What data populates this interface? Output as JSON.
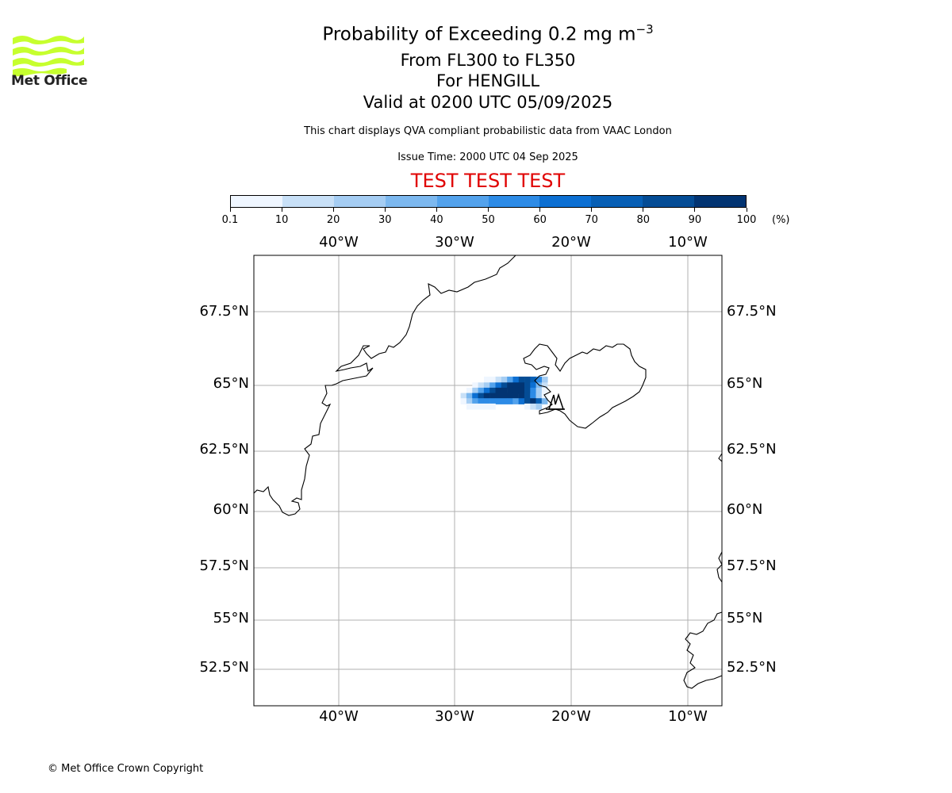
{
  "logo": {
    "text": "Met Office",
    "color": "#c6ff2e"
  },
  "title": {
    "main": "Probability of Exceeding 0.2 mg m",
    "main_sup": "−3",
    "flight_levels": "From FL300 to FL350",
    "volcano": "For HENGILL",
    "valid": "Valid at 0200 UTC 05/09/2025",
    "description": "This chart displays QVA compliant probabilistic data from VAAC London",
    "issue_time": "Issue Time: 2000 UTC 04 Sep 2025",
    "test_banner": "TEST TEST TEST",
    "test_color": "#e00000"
  },
  "colorbar": {
    "ticks": [
      "0.1",
      "10",
      "20",
      "30",
      "40",
      "50",
      "60",
      "70",
      "80",
      "90",
      "100"
    ],
    "units": "(%)",
    "colors": [
      "#eff6ff",
      "#c8e0f7",
      "#a5cdf3",
      "#7cb8ef",
      "#53a2ec",
      "#2d8be6",
      "#0c6fd2",
      "#075fb5",
      "#044c95",
      "#023472"
    ]
  },
  "map": {
    "lon_labels": [
      "40°W",
      "30°W",
      "20°W",
      "10°W"
    ],
    "lat_labels": [
      "67.5°N",
      "65°N",
      "62.5°N",
      "60°N",
      "57.5°N",
      "55°N",
      "52.5°N"
    ],
    "volcano_symbol": "Hengill",
    "plume_probability_rows": [
      {
        "lat": 65.2,
        "lon_start": -27.5,
        "lon_end": -22.0,
        "levels": [
          1,
          1,
          2,
          3,
          5,
          7,
          9,
          9,
          8,
          6,
          3
        ]
      },
      {
        "lat": 65.0,
        "lon_start": -28.5,
        "lon_end": -21.5,
        "levels": [
          1,
          2,
          3,
          5,
          7,
          9,
          10,
          10,
          10,
          9,
          7,
          4,
          2
        ]
      },
      {
        "lat": 64.8,
        "lon_start": -29.0,
        "lon_end": -21.5,
        "levels": [
          1,
          3,
          5,
          7,
          9,
          10,
          10,
          10,
          10,
          10,
          9,
          6,
          3,
          1
        ]
      },
      {
        "lat": 64.6,
        "lon_start": -29.5,
        "lon_end": -21.5,
        "levels": [
          2,
          4,
          7,
          9,
          10,
          10,
          10,
          10,
          10,
          10,
          10,
          9,
          6,
          3,
          1
        ]
      },
      {
        "lat": 64.4,
        "lon_start": -29.5,
        "lon_end": -21.5,
        "levels": [
          1,
          3,
          5,
          6,
          6,
          6,
          6,
          6,
          6,
          5,
          7,
          9,
          10,
          8,
          4
        ]
      },
      {
        "lat": 64.2,
        "lon_start": -29.0,
        "lon_end": -22.0,
        "levels": [
          1,
          1,
          1,
          1,
          1,
          0,
          0,
          0,
          0,
          0,
          1,
          2,
          3
        ]
      }
    ]
  },
  "footer": {
    "copyright": "© Met Office Crown Copyright"
  }
}
